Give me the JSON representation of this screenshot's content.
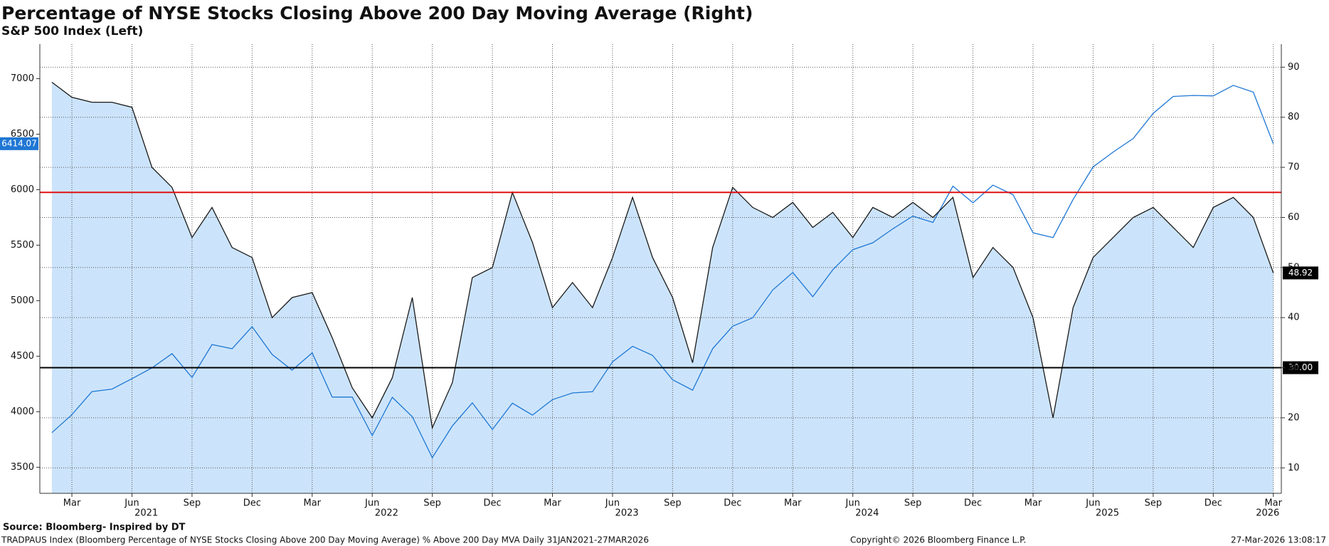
{
  "chart_data": {
    "type": "line-area",
    "title": "Percentage of NYSE Stocks Closing Above 200 Day Moving Average (Right)",
    "subtitle": "S&P 500 Index (Left)",
    "x": [
      "2021-02",
      "2021-03",
      "2021-04",
      "2021-05",
      "2021-06",
      "2021-07",
      "2021-08",
      "2021-09",
      "2021-10",
      "2021-11",
      "2021-12",
      "2022-01",
      "2022-02",
      "2022-03",
      "2022-04",
      "2022-05",
      "2022-06",
      "2022-07",
      "2022-08",
      "2022-09",
      "2022-10",
      "2022-11",
      "2022-12",
      "2023-01",
      "2023-02",
      "2023-03",
      "2023-04",
      "2023-05",
      "2023-06",
      "2023-07",
      "2023-08",
      "2023-09",
      "2023-10",
      "2023-11",
      "2023-12",
      "2024-01",
      "2024-02",
      "2024-03",
      "2024-04",
      "2024-05",
      "2024-06",
      "2024-07",
      "2024-08",
      "2024-09",
      "2024-10",
      "2024-11",
      "2024-12",
      "2025-01",
      "2025-02",
      "2025-03",
      "2025-04",
      "2025-05",
      "2025-06",
      "2025-07",
      "2025-08",
      "2025-09",
      "2025-10",
      "2025-11",
      "2025-12",
      "2026-01",
      "2026-02",
      "2026-03"
    ],
    "series": [
      {
        "axis": "y2",
        "color": "#1a1a1a",
        "fill": "#cce4fb",
        "values": [
          87,
          84,
          83,
          83,
          82,
          70,
          66,
          56,
          62,
          54,
          52,
          40,
          44,
          45,
          36,
          26,
          20,
          28,
          44,
          18,
          27,
          48,
          50,
          65,
          55,
          42,
          47,
          42,
          52,
          64,
          52,
          44,
          31,
          54,
          66,
          62,
          60,
          63,
          58,
          61,
          56,
          62,
          60,
          63,
          60,
          64,
          48,
          54,
          50,
          40,
          20,
          42,
          52,
          56,
          60,
          62,
          58,
          54,
          62,
          64,
          60,
          48.92
        ],
        "last_label": "48.92"
      },
      {
        "axis": "y",
        "color": "#1f77d4",
        "values": [
          3811,
          3973,
          4181,
          4204,
          4298,
          4395,
          4523,
          4308,
          4605,
          4567,
          4766,
          4516,
          4374,
          4530,
          4132,
          4132,
          3785,
          4130,
          3955,
          3586,
          3872,
          4080,
          3840,
          4077,
          3970,
          4109,
          4169,
          4180,
          4450,
          4589,
          4508,
          4288,
          4194,
          4568,
          4770,
          4846,
          5096,
          5254,
          5036,
          5278,
          5460,
          5522,
          5648,
          5762,
          5705,
          6032,
          5882,
          6041,
          5955,
          5612,
          5569,
          5912,
          6205,
          6339,
          6460,
          6688,
          6840,
          6849,
          6845,
          6940,
          6879,
          6414.07
        ],
        "last_label": "6414.07"
      }
    ],
    "ylim": [
      3265,
      7311
    ],
    "yticks": [
      3500,
      4000,
      4500,
      5000,
      5500,
      6000,
      6500,
      7000
    ],
    "y2lim": [
      4.92,
      94.6
    ],
    "y2ticks": [
      10,
      20,
      30,
      40,
      50,
      60,
      70,
      80,
      90
    ],
    "xticks": [
      {
        "value": "2021-03",
        "label": "Mar"
      },
      {
        "value": "2021-06",
        "label": "Jun"
      },
      {
        "value": "2021-09",
        "label": "Sep"
      },
      {
        "value": "2021-12",
        "label": "Dec"
      },
      {
        "value": "2022-03",
        "label": "Mar"
      },
      {
        "value": "2022-06",
        "label": "Jun"
      },
      {
        "value": "2022-09",
        "label": "Sep"
      },
      {
        "value": "2022-12",
        "label": "Dec"
      },
      {
        "value": "2023-03",
        "label": "Mar"
      },
      {
        "value": "2023-06",
        "label": "Jun"
      },
      {
        "value": "2023-09",
        "label": "Sep"
      },
      {
        "value": "2023-12",
        "label": "Dec"
      },
      {
        "value": "2024-03",
        "label": "Mar"
      },
      {
        "value": "2024-06",
        "label": "Jun"
      },
      {
        "value": "2024-09",
        "label": "Sep"
      },
      {
        "value": "2024-12",
        "label": "Dec"
      },
      {
        "value": "2025-03",
        "label": "Mar"
      },
      {
        "value": "2025-06",
        "label": "Jun"
      },
      {
        "value": "2025-09",
        "label": "Sep"
      },
      {
        "value": "2025-12",
        "label": "Dec"
      },
      {
        "value": "2026-03",
        "label": "Mar"
      }
    ],
    "year_labels": [
      {
        "value": "2021-07",
        "label": "2021"
      },
      {
        "value": "2022-07",
        "label": "2022"
      },
      {
        "value": "2023-07",
        "label": "2023"
      },
      {
        "value": "2024-07",
        "label": "2024"
      },
      {
        "value": "2025-07",
        "label": "2025"
      },
      {
        "value": "2026-03",
        "label": "2026"
      }
    ],
    "hlines": [
      {
        "axis": "y2",
        "value": 65,
        "color": "#e01010"
      },
      {
        "axis": "y2",
        "value": 30,
        "color": "#000000",
        "label": "30.00"
      }
    ],
    "grid": true,
    "source": "Source: Bloomberg- Inspired by DT",
    "footer_left": "TRADPAUS Index (Bloomberg Percentage of NYSE Stocks Closing Above 200 Day Moving Average) % Above 200 Day MVA Daily 31JAN2021-27MAR2026",
    "footer_center": "Copyright© 2026 Bloomberg Finance L.P.",
    "footer_right": "27-Mar-2026 13:08:17"
  }
}
